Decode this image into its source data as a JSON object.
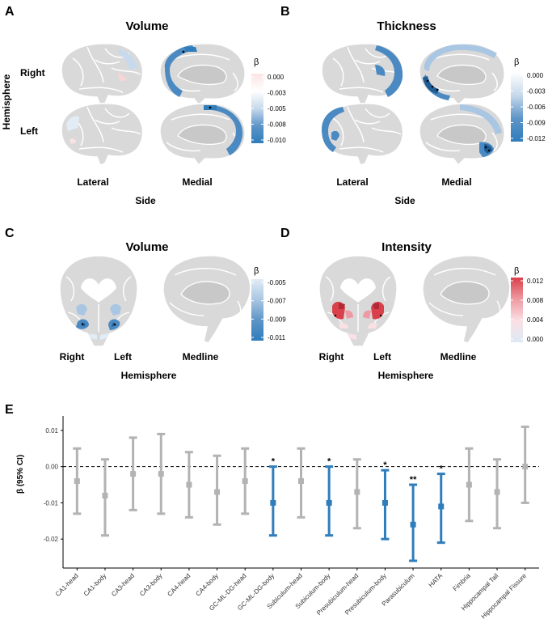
{
  "panels": [
    {
      "id": "A",
      "title": "Volume",
      "row_header": "Hemisphere",
      "rows": [
        "Right",
        "Left"
      ],
      "columns": [
        "Lateral",
        "Medial"
      ],
      "axis_label": "Side",
      "legend": {
        "symbol": "β",
        "ticks": [
          "0.000",
          "-0.003",
          "-0.005",
          "-0.008",
          "-0.010"
        ],
        "colors": [
          "#fbe3e3",
          "#ffffff",
          "#c7d9ec",
          "#5d95c7",
          "#2f7dbb"
        ]
      }
    },
    {
      "id": "B",
      "title": "Thickness",
      "rows": [
        "Right",
        "Left"
      ],
      "columns": [
        "Lateral",
        "Medial"
      ],
      "axis_label": "Side",
      "legend": {
        "symbol": "β",
        "ticks": [
          "0.000",
          "-0.003",
          "-0.006",
          "-0.009",
          "-0.012"
        ],
        "colors": [
          "#ffffff",
          "#c7d9ec",
          "#5d95c7",
          "#2f7dbb"
        ]
      }
    },
    {
      "id": "C",
      "title": "Volume",
      "columns": [
        "Right",
        "Left",
        "Medline"
      ],
      "axis_label": "Hemisphere",
      "legend": {
        "symbol": "β",
        "ticks": [
          "-0.005",
          "-0.007",
          "-0.009",
          "-0.011"
        ],
        "colors": [
          "#e2ecf6",
          "#a9c6e2",
          "#5d95c7",
          "#2f7dbb"
        ]
      }
    },
    {
      "id": "D",
      "title": "Intensity",
      "columns": [
        "Right",
        "Left",
        "Medline"
      ],
      "axis_label": "Hemisphere",
      "legend": {
        "symbol": "β",
        "ticks": [
          "0.012",
          "0.008",
          "0.004",
          "0.000"
        ],
        "colors": [
          "#d9404b",
          "#ee9aa2",
          "#fbe0e4",
          "#dde9f5"
        ]
      }
    }
  ],
  "chart_data": {
    "panel": "E",
    "type": "errorbar",
    "ylabel": "β (95% CI)",
    "ylim": [
      -0.028,
      0.014
    ],
    "yticks": [
      0.01,
      0.0,
      -0.01,
      -0.02
    ],
    "ytick_labels": [
      "0.01",
      "0.00",
      "-0.01",
      "-0.02"
    ],
    "reference_line": 0,
    "categories": [
      "CA1-head",
      "CA1-body",
      "CA3-head",
      "CA3-body",
      "CA4-head",
      "CA4-body",
      "GC-ML-DG-head",
      "GC-ML-DG-body",
      "Subiculum-head",
      "Subiculum-body",
      "Presubiculum-head",
      "Presubiculum-body",
      "Parasubiculum",
      "HATA",
      "Fimbria",
      "Hippocampal Tail",
      "Hippocampal Fissure"
    ],
    "estimate": [
      -0.004,
      -0.008,
      -0.002,
      -0.002,
      -0.005,
      -0.007,
      -0.004,
      -0.01,
      -0.004,
      -0.01,
      -0.007,
      -0.01,
      -0.016,
      -0.011,
      -0.005,
      -0.007,
      0.0
    ],
    "lower": [
      -0.013,
      -0.019,
      -0.012,
      -0.013,
      -0.014,
      -0.016,
      -0.013,
      -0.019,
      -0.014,
      -0.019,
      -0.017,
      -0.02,
      -0.026,
      -0.021,
      -0.015,
      -0.017,
      -0.01
    ],
    "upper": [
      0.005,
      0.002,
      0.008,
      0.009,
      0.004,
      0.003,
      0.005,
      0.0,
      0.005,
      0.0,
      0.002,
      -0.001,
      -0.005,
      -0.002,
      0.005,
      0.002,
      0.011
    ],
    "significance": [
      "",
      "",
      "",
      "",
      "",
      "",
      "",
      "*",
      "",
      "*",
      "",
      "*",
      "**",
      "*",
      "",
      "",
      ""
    ],
    "colors": {
      "significant": "#2f7dbb",
      "nonsignificant": "#b3b3b3"
    }
  }
}
